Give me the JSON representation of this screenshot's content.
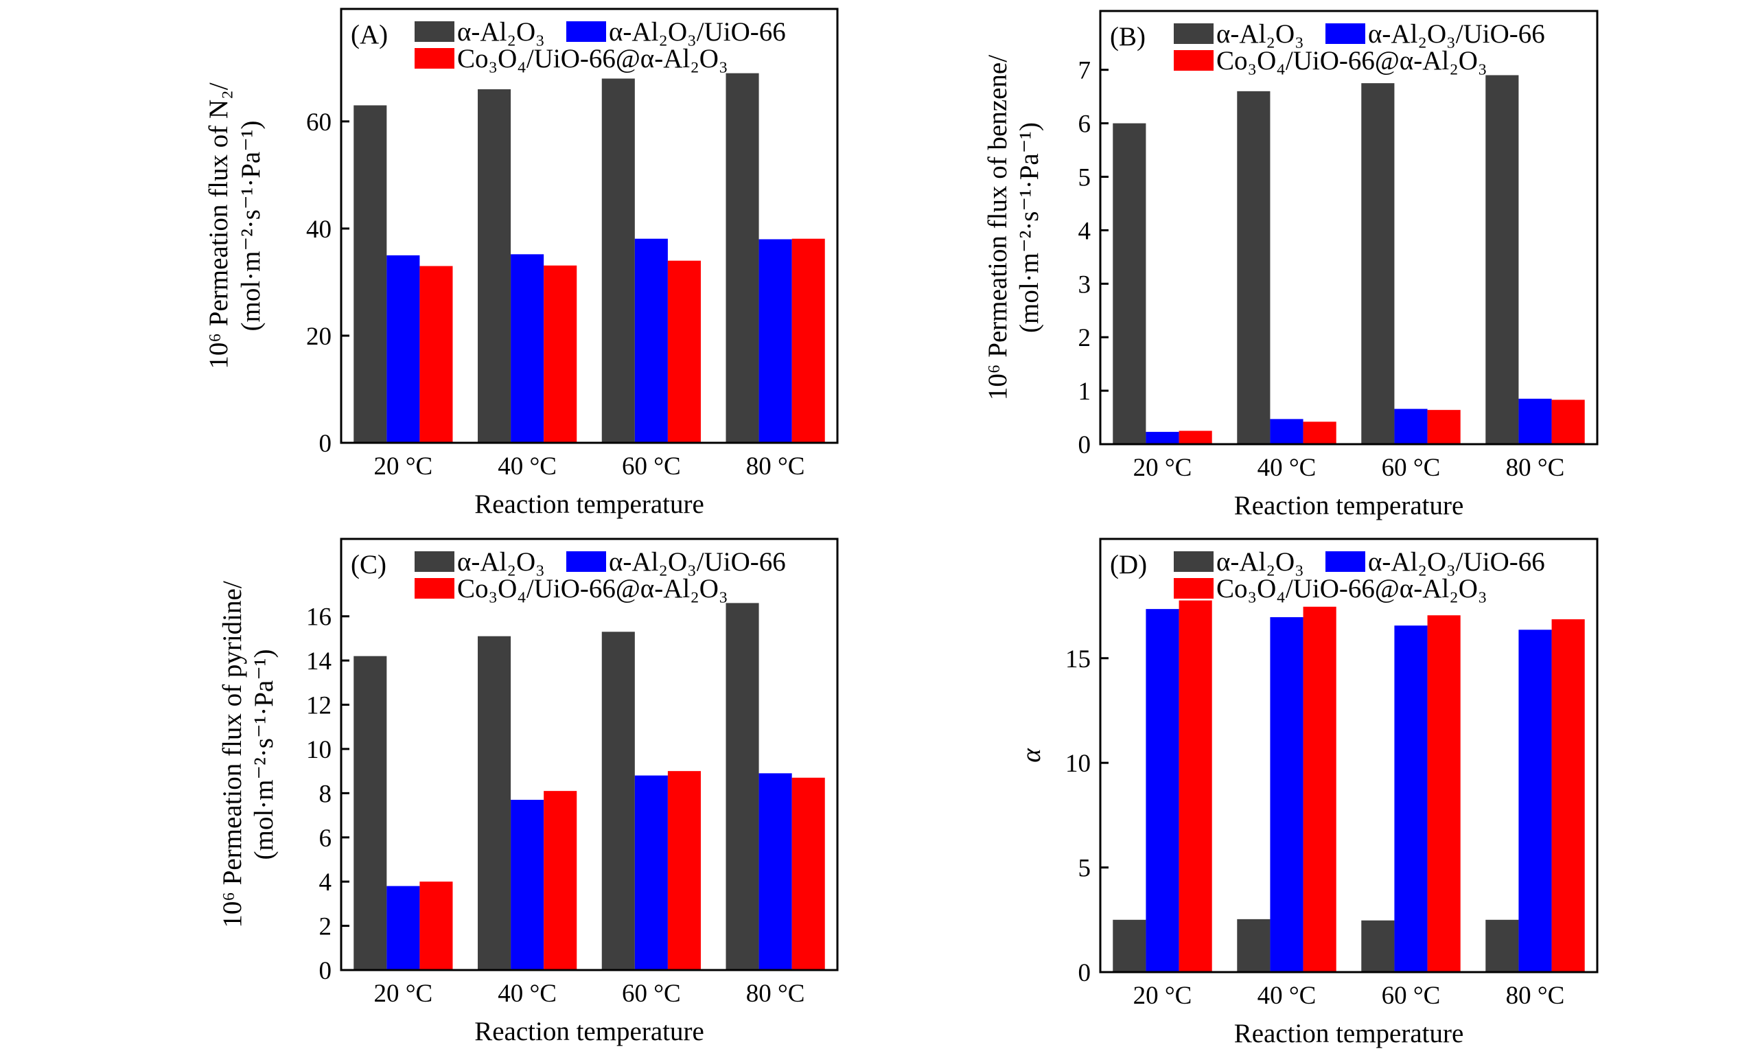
{
  "colors": {
    "alpha_al2o3": "#3f3f3f",
    "alpha_al2o3_uio66": "#0000ff",
    "co3o4_uio66_al2o3": "#ff0000"
  },
  "chart_data": [
    {
      "type": "bar",
      "panel_label": "(A)",
      "categories": [
        "20 °C",
        "40 °C",
        "60 °C",
        "80 °C"
      ],
      "xlabel": "Reaction temperature",
      "ylabel": [
        "10⁶ Permeation flux of N₂/",
        "(mol·m⁻²·s⁻¹·Pa⁻¹)"
      ],
      "ylim": [
        0,
        81
      ],
      "yticks": [
        0,
        20,
        40,
        60
      ],
      "legend": "top",
      "series": [
        {
          "name": "α-Al₂O₃",
          "values": [
            63,
            66,
            68,
            69
          ]
        },
        {
          "name": "α-Al₂O₃/UiO-66",
          "values": [
            35,
            35.2,
            38.1,
            38
          ]
        },
        {
          "name": "Co₃O₄/UiO-66@α-Al₂O₃",
          "values": [
            33,
            33.1,
            34,
            38.1
          ]
        }
      ]
    },
    {
      "type": "bar",
      "panel_label": "(B)",
      "categories": [
        "20 °C",
        "40 °C",
        "60 °C",
        "80 °C"
      ],
      "xlabel": "Reaction temperature",
      "ylabel": [
        "10⁶ Permeation flux of benzene/",
        "(mol·m⁻²·s⁻¹·Pa⁻¹)"
      ],
      "ylim": [
        0,
        8.1
      ],
      "yticks": [
        0,
        1,
        2,
        3,
        4,
        5,
        6,
        7
      ],
      "legend": "top",
      "series": [
        {
          "name": "α-Al₂O₃",
          "values": [
            6.0,
            6.6,
            6.75,
            6.9
          ]
        },
        {
          "name": "α-Al₂O₃/UiO-66",
          "values": [
            0.23,
            0.47,
            0.66,
            0.85
          ]
        },
        {
          "name": "Co₃O₄/UiO-66@α-Al₂O₃",
          "values": [
            0.25,
            0.42,
            0.64,
            0.83
          ]
        }
      ]
    },
    {
      "type": "bar",
      "panel_label": "(C)",
      "categories": [
        "20 °C",
        "40 °C",
        "60 °C",
        "80 °C"
      ],
      "xlabel": "Reaction temperature",
      "ylabel": [
        "10⁶ Permeation flux of pyridine/",
        "(mol·m⁻²·s⁻¹·Pa⁻¹)"
      ],
      "ylim": [
        0,
        19.5
      ],
      "yticks": [
        0,
        2,
        4,
        6,
        8,
        10,
        12,
        14,
        16
      ],
      "legend": "top",
      "series": [
        {
          "name": "α-Al₂O₃",
          "values": [
            14.2,
            15.1,
            15.3,
            16.6
          ]
        },
        {
          "name": "α-Al₂O₃/UiO-66",
          "values": [
            3.8,
            7.7,
            8.8,
            8.9
          ]
        },
        {
          "name": "Co₃O₄/UiO-66@α-Al₂O₃",
          "values": [
            4.0,
            8.1,
            9.0,
            8.7
          ]
        }
      ]
    },
    {
      "type": "bar",
      "panel_label": "(D)",
      "categories": [
        "20 °C",
        "40 °C",
        "60 °C",
        "80 °C"
      ],
      "xlabel": "Reaction temperature",
      "ylabel": [
        "α"
      ],
      "ylim": [
        0,
        20.7
      ],
      "yticks": [
        0,
        5,
        10,
        15
      ],
      "legend": "top",
      "series": [
        {
          "name": "α-Al₂O₃",
          "values": [
            2.5,
            2.53,
            2.47,
            2.5
          ]
        },
        {
          "name": "α-Al₂O₃/UiO-66",
          "values": [
            17.35,
            16.96,
            16.56,
            16.36
          ]
        },
        {
          "name": "Co₃O₄/UiO-66@α-Al₂O₃",
          "values": [
            17.76,
            17.46,
            17.05,
            16.86
          ]
        }
      ]
    }
  ]
}
